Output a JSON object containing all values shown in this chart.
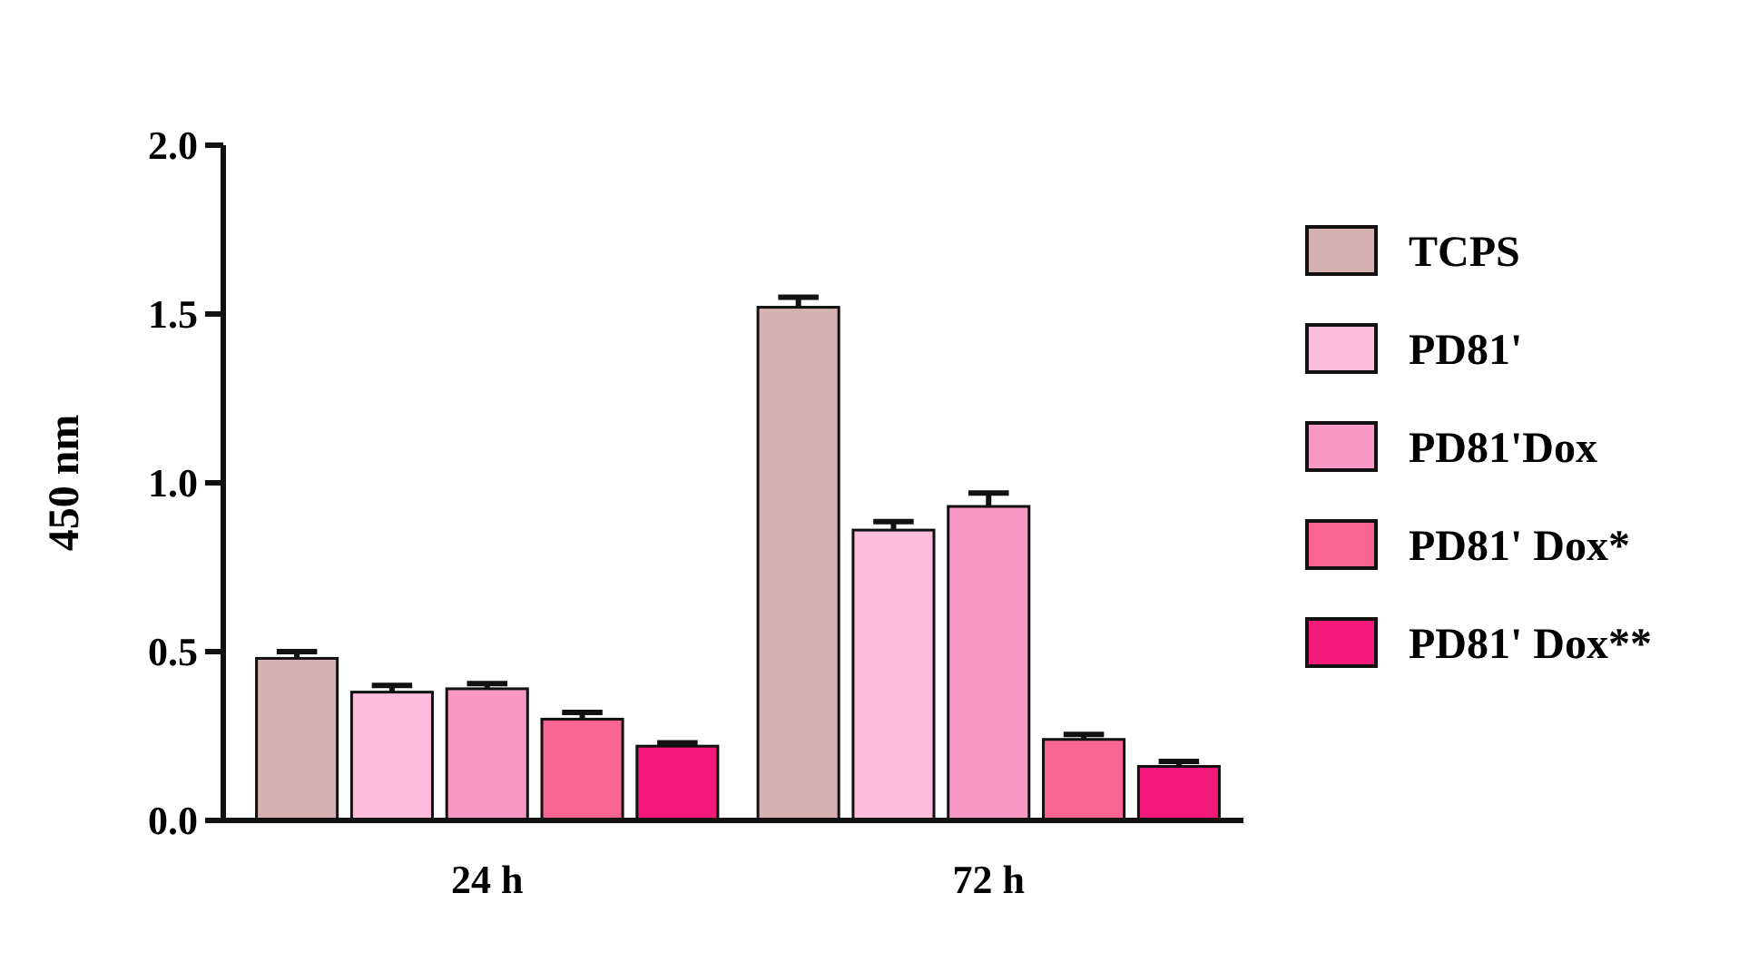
{
  "chart_data": {
    "type": "bar",
    "ylabel": "450 nm",
    "categories": [
      "24 h",
      "72 h"
    ],
    "ylim": [
      0,
      2
    ],
    "yticks": [
      {
        "value": 0,
        "label": "0.0"
      },
      {
        "value": 0.5,
        "label": "0.5"
      },
      {
        "value": 1,
        "label": "1.0"
      },
      {
        "value": 1.5,
        "label": "1.5"
      },
      {
        "value": 2,
        "label": "2.0"
      }
    ],
    "legend": "right",
    "series": [
      {
        "name": "TCPS",
        "color": "#d6b1b1",
        "values": [
          0.48,
          1.52
        ],
        "errors": [
          0.02,
          0.03
        ]
      },
      {
        "name": "PD81'",
        "color": "#fdbddb",
        "values": [
          0.38,
          0.86
        ],
        "errors": [
          0.02,
          0.025
        ]
      },
      {
        "name": "PD81'Dox",
        "color": "#f799c4",
        "values": [
          0.39,
          0.93
        ],
        "errors": [
          0.015,
          0.04
        ]
      },
      {
        "name": "PD81' Dox*",
        "color": "#f86592",
        "values": [
          0.3,
          0.24
        ],
        "errors": [
          0.02,
          0.015
        ]
      },
      {
        "name": "PD81' Dox**",
        "color": "#f41a7c",
        "values": [
          0.22,
          0.16
        ],
        "errors": [
          0.01,
          0.015
        ]
      }
    ]
  }
}
